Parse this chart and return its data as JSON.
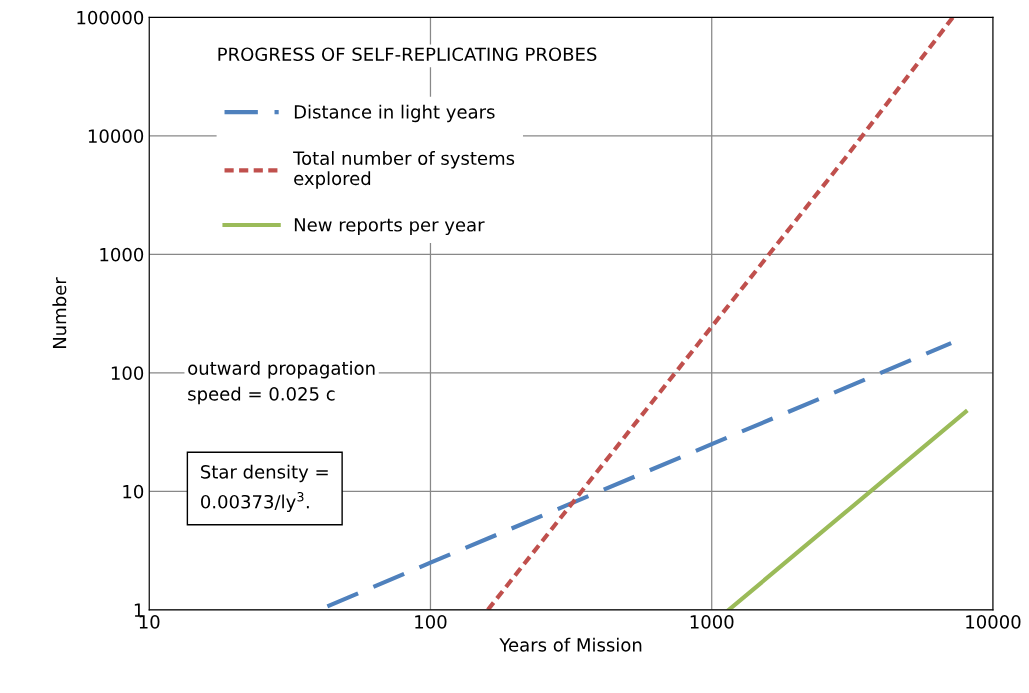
{
  "chart_data": {
    "type": "line",
    "title": "PROGRESS OF SELF-REPLICATING PROBES",
    "xlabel": "Years of Mission",
    "ylabel": "Number",
    "log": "xy",
    "grid": true,
    "legend": "top left",
    "xlim": [
      10,
      10000
    ],
    "xticks": [
      10,
      100,
      1000,
      10000
    ],
    "ylim": [
      1,
      100000
    ],
    "yticks": [
      1,
      10,
      100,
      1000,
      10000,
      100000
    ],
    "series": [
      {
        "name": "Distance in light years",
        "color": "#4f81bd",
        "line_style": "dashed",
        "x": [
          43,
          100,
          300,
          1000,
          3000,
          7100
        ],
        "values": [
          1.07,
          2.5,
          7.5,
          25,
          75,
          178
        ]
      },
      {
        "name": "Total number of systems\nexplored",
        "color": "#c0504d",
        "line_style": "dotted",
        "x": [
          160,
          300,
          1000,
          3000,
          7200
        ],
        "values": [
          1,
          6.6,
          245,
          6600,
          100000
        ]
      },
      {
        "name": "New reports per year",
        "color": "#9bbb59",
        "line_style": "solid",
        "x": [
          1150,
          3000,
          8000
        ],
        "values": [
          1,
          6.7,
          47
        ]
      }
    ],
    "annotations": [
      "outward propagation\nspeed = 0.025 c",
      "Star density =\n0.00373/ly$^{3}$."
    ]
  }
}
